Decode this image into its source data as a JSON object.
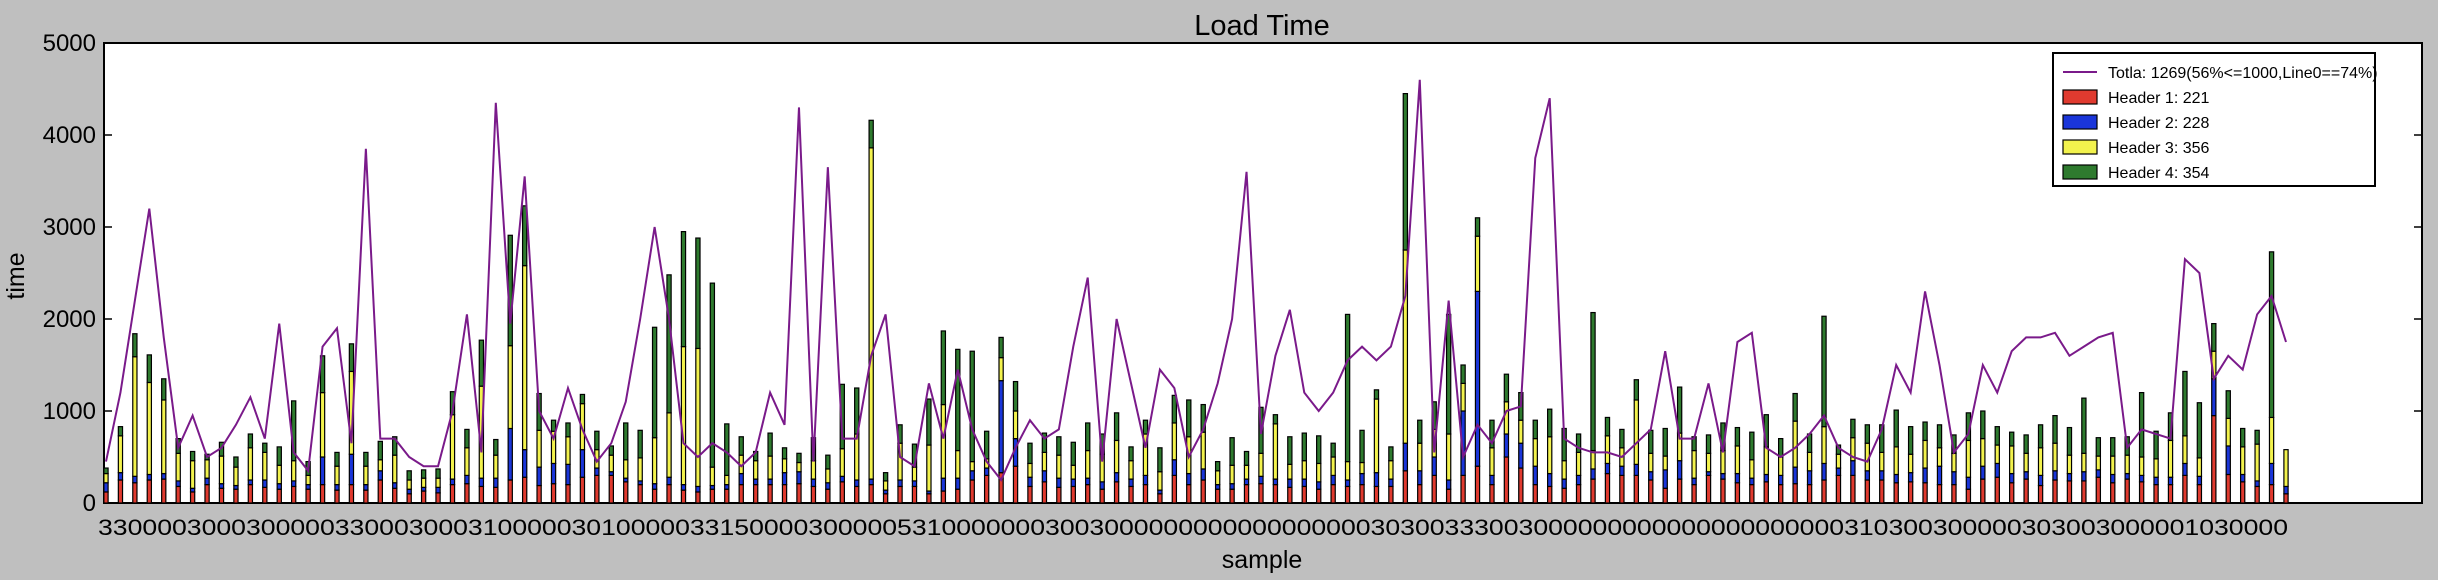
{
  "chart_data": {
    "type": "bar",
    "title": "Load Time",
    "xlabel": "sample",
    "ylabel": "time",
    "ylim": [
      0,
      5000
    ],
    "yticks": [
      "0",
      "1000",
      "2000",
      "3000",
      "4000",
      "5000"
    ],
    "grid": false,
    "legend_position": "top-right",
    "x_tick_string": "3300003000300000330003000310000030100000331500003000005310000000300300000000000000000030300333003000000000000000000000310300300000303003000001030000",
    "series": [
      {
        "name": "Header 1: 221",
        "color": "#e03a2f",
        "values": [
          120,
          250,
          220,
          250,
          260,
          180,
          120,
          200,
          160,
          150,
          200,
          170,
          150,
          180,
          150,
          200,
          140,
          200,
          140,
          250,
          160,
          100,
          130,
          110,
          200,
          210,
          180,
          170,
          250,
          280,
          190,
          210,
          200,
          280,
          300,
          300,
          230,
          200,
          150,
          200,
          140,
          120,
          150,
          150,
          200,
          200,
          200,
          200,
          210,
          180,
          150,
          230,
          180,
          200,
          100,
          180,
          180,
          100,
          130,
          150,
          250,
          300,
          330,
          400,
          180,
          230,
          170,
          180,
          200,
          150,
          230,
          180,
          200,
          100,
          300,
          200,
          250,
          150,
          150,
          200,
          210,
          200,
          170,
          180,
          150,
          200,
          180,
          200,
          180,
          180,
          350,
          200,
          300,
          150,
          300,
          400,
          200,
          500,
          380,
          200,
          180,
          160,
          200,
          260,
          320,
          300,
          300,
          250,
          160,
          260,
          200,
          300,
          260,
          220,
          200,
          230,
          200,
          210,
          200,
          250,
          300,
          300,
          250,
          250,
          220,
          230,
          220,
          200,
          200,
          150,
          260,
          280,
          220,
          260,
          190,
          250,
          240,
          240,
          280,
          220,
          260,
          230,
          200,
          200,
          300,
          200,
          950,
          310,
          230,
          180,
          200,
          100,
          230,
          160
        ]
      },
      {
        "name": "Header 2: 228",
        "color": "#1a35d9",
        "values": [
          100,
          80,
          70,
          60,
          60,
          60,
          40,
          70,
          50,
          40,
          50,
          80,
          60,
          60,
          50,
          300,
          60,
          330,
          60,
          100,
          60,
          50,
          40,
          60,
          60,
          90,
          90,
          100,
          560,
          300,
          200,
          220,
          220,
          300,
          80,
          40,
          40,
          40,
          60,
          80,
          60,
          60,
          40,
          50,
          120,
          60,
          60,
          130,
          130,
          80,
          70,
          60,
          70,
          60,
          40,
          70,
          60,
          30,
          140,
          120,
          100,
          80,
          1000,
          300,
          100,
          120,
          100,
          80,
          70,
          80,
          100,
          80,
          100,
          40,
          170,
          120,
          120,
          50,
          60,
          60,
          80,
          60,
          90,
          80,
          80,
          100,
          70,
          120,
          150,
          80,
          300,
          150,
          200,
          100,
          700,
          1900,
          100,
          250,
          270,
          200,
          140,
          100,
          100,
          110,
          110,
          100,
          120,
          90,
          200,
          200,
          70,
          40,
          60,
          100,
          70,
          80,
          100,
          180,
          150,
          180,
          80,
          160,
          100,
          100,
          90,
          100,
          160,
          200,
          140,
          130,
          140,
          150,
          100,
          80,
          110,
          100,
          80,
          100,
          80,
          90,
          60,
          70,
          80,
          80,
          130,
          90,
          400,
          310,
          80,
          60,
          230,
          80,
          320,
          400
        ]
      },
      {
        "name": "Header 3: 356",
        "color": "#f2f24d",
        "values": [
          100,
          400,
          1300,
          1000,
          800,
          300,
          300,
          200,
          300,
          200,
          350,
          300,
          200,
          220,
          100,
          700,
          200,
          900,
          200,
          120,
          300,
          100,
          100,
          100,
          700,
          300,
          1000,
          250,
          900,
          2000,
          400,
          350,
          300,
          500,
          200,
          180,
          200,
          250,
          500,
          700,
          1500,
          1500,
          200,
          100,
          200,
          200,
          250,
          150,
          100,
          200,
          150,
          300,
          500,
          3600,
          100,
          400,
          150,
          500,
          800,
          300,
          100,
          100,
          250,
          300,
          150,
          200,
          250,
          150,
          300,
          300,
          350,
          200,
          450,
          200,
          400,
          400,
          400,
          150,
          200,
          150,
          250,
          600,
          160,
          200,
          200,
          200,
          200,
          120,
          800,
          200,
          2100,
          300,
          300,
          500,
          300,
          600,
          300,
          350,
          250,
          300,
          400,
          200,
          250,
          200,
          300,
          200,
          700,
          200,
          150,
          300,
          300,
          200,
          250,
          300,
          200,
          300,
          200,
          500,
          200,
          400,
          150,
          250,
          300,
          200,
          300,
          200,
          300,
          200,
          200,
          400,
          300,
          200,
          300,
          200,
          300,
          300,
          200,
          200,
          150,
          200,
          200,
          200,
          200,
          400,
          300,
          200,
          300,
          300,
          300,
          400,
          500,
          400,
          600
        ]
      },
      {
        "name": "Header 4: 354",
        "color": "#2e7a2e",
        "values": [
          60,
          100,
          250,
          300,
          230,
          160,
          100,
          60,
          150,
          110,
          150,
          100,
          200,
          650,
          150,
          400,
          150,
          300,
          150,
          200,
          200,
          100,
          90,
          100,
          250,
          200,
          500,
          170,
          1200,
          650,
          400,
          120,
          150,
          100,
          200,
          100,
          400,
          300,
          1200,
          1500,
          1250,
          1200,
          2000,
          560,
          200,
          100,
          250,
          120,
          100,
          250,
          150,
          700,
          500,
          300,
          90,
          200,
          250,
          500,
          800,
          1100,
          1200,
          300,
          220,
          320,
          220,
          210,
          200,
          250,
          300,
          220,
          300,
          150,
          150,
          260,
          300,
          400,
          300,
          100,
          300,
          150,
          500,
          100,
          300,
          300,
          300,
          150,
          1600,
          350,
          100,
          150,
          1700,
          250,
          300,
          1300,
          200,
          200,
          300,
          300,
          300,
          200,
          300,
          350,
          200,
          1500,
          200,
          200,
          220,
          250,
          300,
          500,
          150,
          200,
          300,
          200,
          300,
          350,
          200,
          300,
          200,
          1200,
          100,
          200,
          200,
          300,
          400,
          300,
          200,
          250,
          200,
          300,
          300,
          200,
          150,
          200,
          250,
          300,
          300,
          600,
          200,
          200,
          200,
          700,
          300,
          300,
          700,
          600,
          300,
          300,
          200,
          150,
          1800
        ]
      }
    ],
    "line": {
      "name": "Totla: 1269(56%<=1000,Line0==74%)",
      "color": "#7a1a8a",
      "values": [
        450,
        1200,
        2200,
        3200,
        1800,
        600,
        950,
        500,
        600,
        850,
        1150,
        700,
        1950,
        550,
        350,
        1700,
        1900,
        650,
        3850,
        700,
        700,
        500,
        400,
        400,
        1000,
        2050,
        550,
        4350,
        1950,
        3550,
        1000,
        700,
        1250,
        800,
        450,
        650,
        1100,
        2000,
        3000,
        2000,
        650,
        500,
        650,
        550,
        400,
        550,
        1200,
        850,
        4300,
        450,
        3650,
        700,
        700,
        1600,
        2050,
        500,
        400,
        1300,
        700,
        1450,
        800,
        450,
        250,
        600,
        900,
        700,
        800,
        1700,
        2450,
        450,
        2000,
        1300,
        600,
        1450,
        1250,
        500,
        800,
        1300,
        2000,
        3600,
        750,
        1600,
        2100,
        1200,
        1000,
        1200,
        1550,
        1700,
        1550,
        1700,
        2250,
        4600,
        550,
        2200,
        500,
        850,
        650,
        1000,
        1050,
        3750,
        4400,
        700,
        600,
        550,
        550,
        500,
        650,
        800,
        1650,
        700,
        700,
        1300,
        550,
        1750,
        1850,
        600,
        500,
        600,
        750,
        950,
        600,
        500,
        450,
        800,
        1500,
        1200,
        2300,
        1500,
        550,
        750,
        1500,
        1200,
        1650,
        1800,
        1800,
        1850,
        1600,
        1700,
        1800,
        1850,
        600,
        800,
        750,
        700,
        2650,
        2500,
        1350,
        1600,
        1450,
        2050,
        2250,
        1750
      ]
    }
  }
}
